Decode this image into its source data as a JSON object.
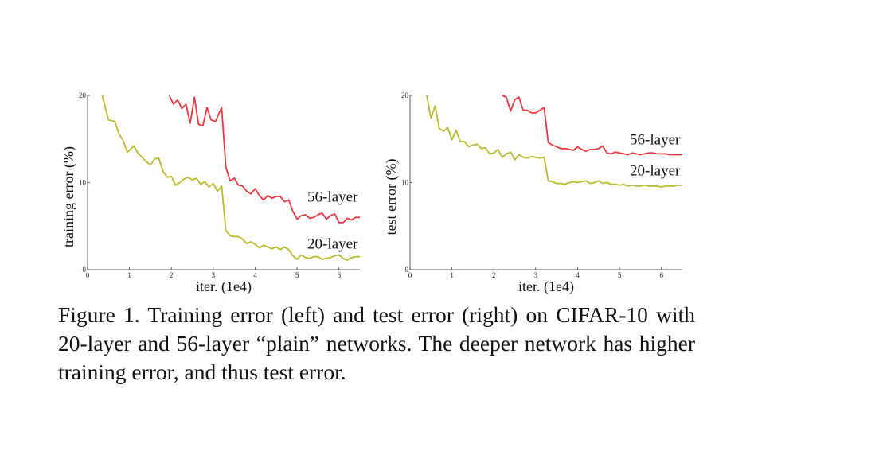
{
  "figure": {
    "caption": "Figure 1. Training error (left) and test error (right) on CIFAR-10 with 20-layer and 56-layer “plain” networks. The deeper network has higher training error, and thus test error."
  },
  "chart_data": [
    {
      "type": "line",
      "title": "",
      "xlabel": "iter. (1e4)",
      "ylabel": "training error (%)",
      "xlim": [
        0,
        6.5
      ],
      "ylim": [
        0,
        20
      ],
      "xticks": [
        "0",
        "1",
        "2",
        "3",
        "4",
        "5",
        "6"
      ],
      "yticks": [
        "0",
        "10",
        "20"
      ],
      "grid": false,
      "series": [
        {
          "name": "56-layer",
          "color": "#e8383d",
          "x": [
            1.95,
            2.05,
            2.15,
            2.25,
            2.35,
            2.45,
            2.55,
            2.65,
            2.75,
            2.85,
            2.95,
            3.05,
            3.2,
            3.3,
            3.4,
            3.5,
            3.6,
            3.7,
            3.8,
            3.9,
            4.0,
            4.1,
            4.2,
            4.3,
            4.4,
            4.5,
            4.6,
            4.7,
            4.8,
            4.9,
            5.0,
            5.1,
            5.2,
            5.3,
            5.4,
            5.5,
            5.6,
            5.7,
            5.8,
            5.9,
            6.0,
            6.1,
            6.2,
            6.3,
            6.4,
            6.5
          ],
          "y": [
            20,
            19,
            19.5,
            18.5,
            19,
            16.8,
            19.8,
            16.7,
            16.5,
            18.6,
            17.2,
            17.0,
            18.6,
            11.8,
            10.2,
            10.5,
            9.7,
            9.6,
            9.0,
            8.7,
            9.3,
            8.5,
            8.0,
            8.5,
            8.2,
            8.4,
            8.4,
            7.8,
            8.0,
            6.7,
            5.8,
            6.2,
            6.3,
            5.9,
            6.0,
            6.3,
            6.5,
            5.8,
            6.2,
            6.4,
            5.4,
            5.4,
            5.9,
            5.7,
            6.0,
            6.0
          ]
        },
        {
          "name": "20-layer",
          "color": "#b8bb2a",
          "x": [
            0.35,
            0.5,
            0.65,
            0.75,
            0.85,
            0.95,
            1.0,
            1.1,
            1.2,
            1.3,
            1.4,
            1.5,
            1.6,
            1.7,
            1.8,
            1.9,
            2.0,
            2.1,
            2.2,
            2.3,
            2.4,
            2.5,
            2.6,
            2.7,
            2.8,
            2.9,
            3.0,
            3.1,
            3.2,
            3.3,
            3.4,
            3.5,
            3.6,
            3.7,
            3.8,
            3.9,
            4.0,
            4.1,
            4.2,
            4.3,
            4.4,
            4.5,
            4.6,
            4.7,
            4.8,
            4.9,
            5.0,
            5.1,
            5.2,
            5.3,
            5.4,
            5.5,
            5.6,
            5.7,
            5.8,
            5.9,
            6.0,
            6.1,
            6.2,
            6.3,
            6.4,
            6.5
          ],
          "y": [
            20,
            17.2,
            17.0,
            15.6,
            14.8,
            13.5,
            13.7,
            14.2,
            13.4,
            12.9,
            12.4,
            12.0,
            12.7,
            12.8,
            11.3,
            10.6,
            10.7,
            9.7,
            10.0,
            10.4,
            10.6,
            10.3,
            10.5,
            9.8,
            10.1,
            9.5,
            9.9,
            9.0,
            9.6,
            4.5,
            3.9,
            3.8,
            3.8,
            3.5,
            3.0,
            3.2,
            2.9,
            2.5,
            2.8,
            2.6,
            2.4,
            2.6,
            2.3,
            2.6,
            2.3,
            1.6,
            1.2,
            1.7,
            1.4,
            1.3,
            1.5,
            1.5,
            1.2,
            1.3,
            1.4,
            1.6,
            1.7,
            1.3,
            1.1,
            1.4,
            1.5,
            1.5
          ]
        }
      ]
    },
    {
      "type": "line",
      "title": "",
      "xlabel": "iter. (1e4)",
      "ylabel": "test error (%)",
      "xlim": [
        0,
        6.5
      ],
      "ylim": [
        0,
        20
      ],
      "xticks": [
        "0",
        "1",
        "2",
        "3",
        "4",
        "5",
        "6"
      ],
      "yticks": [
        "0",
        "10",
        "20"
      ],
      "grid": false,
      "series": [
        {
          "name": "56-layer",
          "color": "#e8383d",
          "x": [
            2.2,
            2.3,
            2.4,
            2.5,
            2.6,
            2.7,
            2.8,
            2.9,
            3.0,
            3.1,
            3.2,
            3.3,
            3.4,
            3.5,
            3.6,
            3.7,
            3.8,
            3.9,
            4.0,
            4.1,
            4.2,
            4.3,
            4.4,
            4.5,
            4.6,
            4.7,
            4.8,
            4.9,
            5.0,
            5.1,
            5.2,
            5.3,
            5.4,
            5.5,
            5.6,
            5.7,
            5.8,
            5.9,
            6.0,
            6.1,
            6.2,
            6.3,
            6.4,
            6.5
          ],
          "y": [
            20,
            19.8,
            18.2,
            19.5,
            19.8,
            18.3,
            18.3,
            18.0,
            18.0,
            18.3,
            18.6,
            14.6,
            14.3,
            14.1,
            13.9,
            13.9,
            13.8,
            13.7,
            14.1,
            13.8,
            13.6,
            13.8,
            13.8,
            13.9,
            14.2,
            13.4,
            13.3,
            13.5,
            13.4,
            13.3,
            13.2,
            13.4,
            13.3,
            13.2,
            13.3,
            13.4,
            13.4,
            13.3,
            13.3,
            13.3,
            13.2,
            13.2,
            13.2,
            13.2
          ]
        },
        {
          "name": "20-layer",
          "color": "#b8bb2a",
          "x": [
            0.4,
            0.5,
            0.6,
            0.7,
            0.8,
            0.9,
            1.0,
            1.1,
            1.2,
            1.3,
            1.4,
            1.5,
            1.6,
            1.7,
            1.8,
            1.9,
            2.0,
            2.1,
            2.2,
            2.3,
            2.4,
            2.5,
            2.6,
            2.7,
            2.8,
            2.9,
            3.0,
            3.1,
            3.2,
            3.3,
            3.4,
            3.5,
            3.6,
            3.7,
            3.8,
            3.9,
            4.0,
            4.1,
            4.2,
            4.3,
            4.4,
            4.5,
            4.6,
            4.7,
            4.8,
            4.9,
            5.0,
            5.1,
            5.2,
            5.3,
            5.4,
            5.5,
            5.6,
            5.7,
            5.8,
            5.9,
            6.0,
            6.1,
            6.2,
            6.3,
            6.4,
            6.5
          ],
          "y": [
            20,
            17.4,
            18.8,
            16.2,
            15.9,
            16.3,
            14.9,
            16.0,
            14.7,
            14.7,
            14.1,
            14.3,
            14.4,
            13.9,
            14.0,
            13.3,
            13.4,
            13.8,
            12.9,
            13.3,
            13.5,
            12.6,
            13.2,
            12.9,
            12.8,
            13.0,
            12.9,
            12.8,
            12.9,
            10.2,
            10.1,
            9.9,
            9.9,
            9.8,
            10.0,
            10.1,
            10.0,
            10.1,
            10.2,
            9.9,
            10.0,
            10.2,
            9.9,
            10.0,
            9.8,
            9.8,
            9.7,
            9.8,
            9.6,
            9.7,
            9.6,
            9.6,
            9.7,
            9.6,
            9.6,
            9.6,
            9.5,
            9.6,
            9.6,
            9.6,
            9.7,
            9.7
          ]
        }
      ]
    }
  ]
}
